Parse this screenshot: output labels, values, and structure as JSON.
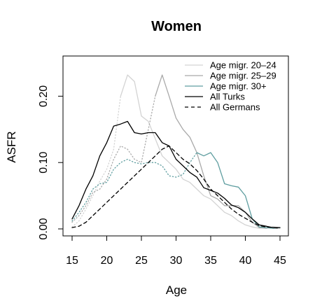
{
  "chart_data": {
    "type": "line",
    "title": "Women",
    "xlabel": "Age",
    "ylabel": "ASFR",
    "xlim": [
      15,
      45
    ],
    "ylim": [
      0,
      0.25
    ],
    "xticks": [
      15,
      20,
      25,
      30,
      35,
      40,
      45
    ],
    "xtick_labels": [
      "15",
      "20",
      "25",
      "30",
      "35",
      "40",
      "45"
    ],
    "yticks": [
      0,
      0.1,
      0.2
    ],
    "ytick_labels": [
      "0.00",
      "0.10",
      "0.20"
    ],
    "grid": false,
    "legend_position": "top-right",
    "legend": [
      {
        "label": "Age migr. 20–24",
        "color": "#d3d3d3",
        "dash": "solid"
      },
      {
        "label": "Age migr. 25–29",
        "color": "#a9a9a9",
        "dash": "solid"
      },
      {
        "label": "Age migr. 30+",
        "color": "#5f9ea0",
        "dash": "solid"
      },
      {
        "label": "All Turks",
        "color": "#000000",
        "dash": "solid"
      },
      {
        "label": "All Germans",
        "color": "#000000",
        "dash": "dashed"
      }
    ],
    "series": [
      {
        "name": "Age migr. 20–24",
        "color": "#d3d3d3",
        "segments": [
          {
            "style": "dotted",
            "points": [
              [
                15,
                0.003
              ],
              [
                16,
                0.012
              ],
              [
                17,
                0.03
              ],
              [
                18,
                0.05
              ],
              [
                19,
                0.072
              ],
              [
                20,
                0.09
              ],
              [
                21,
                0.12
              ],
              [
                22,
                0.2
              ]
            ]
          },
          {
            "style": "solid",
            "points": [
              [
                22,
                0.2
              ],
              [
                23,
                0.232
              ],
              [
                24,
                0.222
              ],
              [
                25,
                0.17
              ],
              [
                26,
                0.162
              ],
              [
                27,
                0.136
              ],
              [
                28,
                0.11
              ],
              [
                29,
                0.1
              ],
              [
                30,
                0.09
              ],
              [
                31,
                0.075
              ],
              [
                32,
                0.07
              ],
              [
                33,
                0.06
              ],
              [
                34,
                0.05
              ],
              [
                35,
                0.045
              ],
              [
                36,
                0.035
              ],
              [
                37,
                0.025
              ],
              [
                38,
                0.02
              ],
              [
                39,
                0.012
              ],
              [
                40,
                0.006
              ],
              [
                41,
                0.003
              ],
              [
                42,
                0.001
              ],
              [
                43,
                0.002
              ],
              [
                44,
                0.001
              ],
              [
                45,
                0.001
              ]
            ]
          }
        ]
      },
      {
        "name": "Age migr. 25–29",
        "color": "#a9a9a9",
        "segments": [
          {
            "style": "dotted",
            "points": [
              [
                15,
                0.01
              ],
              [
                16,
                0.02
              ],
              [
                17,
                0.035
              ],
              [
                18,
                0.055
              ],
              [
                19,
                0.06
              ],
              [
                20,
                0.075
              ],
              [
                21,
                0.105
              ],
              [
                22,
                0.125
              ],
              [
                23,
                0.12
              ],
              [
                24,
                0.105
              ],
              [
                25,
                0.1
              ],
              [
                26,
                0.15
              ],
              [
                27,
                0.2
              ]
            ]
          },
          {
            "style": "solid",
            "points": [
              [
                27,
                0.2
              ],
              [
                28,
                0.232
              ],
              [
                29,
                0.2
              ],
              [
                30,
                0.167
              ],
              [
                31,
                0.15
              ],
              [
                32,
                0.138
              ],
              [
                33,
                0.115
              ],
              [
                34,
                0.08
              ],
              [
                35,
                0.05
              ],
              [
                36,
                0.045
              ],
              [
                37,
                0.035
              ],
              [
                38,
                0.035
              ],
              [
                39,
                0.035
              ],
              [
                40,
                0.025
              ],
              [
                41,
                0.01
              ],
              [
                42,
                0.002
              ],
              [
                43,
                0.001
              ],
              [
                44,
                0.003
              ],
              [
                45,
                0.002
              ]
            ]
          }
        ]
      },
      {
        "name": "Age migr. 30+",
        "color": "#5f9ea0",
        "segments": [
          {
            "style": "dotted",
            "points": [
              [
                15,
                0.012
              ],
              [
                16,
                0.025
              ],
              [
                17,
                0.04
              ],
              [
                18,
                0.06
              ],
              [
                19,
                0.068
              ],
              [
                20,
                0.07
              ],
              [
                21,
                0.09
              ],
              [
                22,
                0.1
              ],
              [
                23,
                0.105
              ],
              [
                24,
                0.1
              ],
              [
                25,
                0.098
              ],
              [
                26,
                0.1
              ],
              [
                27,
                0.1
              ],
              [
                28,
                0.095
              ],
              [
                29,
                0.08
              ],
              [
                30,
                0.078
              ],
              [
                31,
                0.082
              ],
              [
                32,
                0.1
              ],
              [
                33,
                0.115
              ]
            ]
          },
          {
            "style": "solid",
            "points": [
              [
                33,
                0.115
              ],
              [
                34,
                0.11
              ],
              [
                35,
                0.115
              ],
              [
                36,
                0.1
              ],
              [
                37,
                0.068
              ],
              [
                38,
                0.065
              ],
              [
                39,
                0.063
              ],
              [
                40,
                0.05
              ],
              [
                41,
                0.015
              ],
              [
                42,
                0.003
              ],
              [
                43,
                0.002
              ],
              [
                44,
                0.001
              ],
              [
                45,
                0.002
              ]
            ]
          }
        ]
      },
      {
        "name": "All Turks",
        "color": "#000000",
        "segments": [
          {
            "style": "solid",
            "points": [
              [
                15,
                0.015
              ],
              [
                16,
                0.035
              ],
              [
                17,
                0.06
              ],
              [
                18,
                0.08
              ],
              [
                19,
                0.11
              ],
              [
                20,
                0.13
              ],
              [
                21,
                0.155
              ],
              [
                22,
                0.158
              ],
              [
                23,
                0.162
              ],
              [
                24,
                0.145
              ],
              [
                25,
                0.143
              ],
              [
                26,
                0.145
              ],
              [
                27,
                0.145
              ],
              [
                28,
                0.13
              ],
              [
                29,
                0.125
              ],
              [
                30,
                0.105
              ],
              [
                31,
                0.095
              ],
              [
                32,
                0.085
              ],
              [
                33,
                0.078
              ],
              [
                34,
                0.062
              ],
              [
                35,
                0.058
              ],
              [
                36,
                0.054
              ],
              [
                37,
                0.046
              ],
              [
                38,
                0.036
              ],
              [
                39,
                0.032
              ],
              [
                40,
                0.025
              ],
              [
                41,
                0.015
              ],
              [
                42,
                0.006
              ],
              [
                43,
                0.004
              ],
              [
                44,
                0.002
              ],
              [
                45,
                0.002
              ]
            ]
          }
        ]
      },
      {
        "name": "All Germans",
        "color": "#000000",
        "segments": [
          {
            "style": "dashed",
            "points": [
              [
                15,
                0.002
              ],
              [
                16,
                0.004
              ],
              [
                17,
                0.01
              ],
              [
                18,
                0.02
              ],
              [
                19,
                0.03
              ],
              [
                20,
                0.04
              ],
              [
                21,
                0.05
              ],
              [
                22,
                0.06
              ],
              [
                23,
                0.07
              ],
              [
                24,
                0.08
              ],
              [
                25,
                0.09
              ],
              [
                26,
                0.1
              ],
              [
                27,
                0.11
              ],
              [
                28,
                0.12
              ],
              [
                29,
                0.125
              ],
              [
                30,
                0.115
              ],
              [
                31,
                0.105
              ],
              [
                32,
                0.098
              ],
              [
                33,
                0.088
              ],
              [
                34,
                0.075
              ],
              [
                35,
                0.06
              ],
              [
                36,
                0.05
              ],
              [
                37,
                0.04
              ],
              [
                38,
                0.03
              ],
              [
                39,
                0.022
              ],
              [
                40,
                0.016
              ],
              [
                41,
                0.01
              ],
              [
                42,
                0.005
              ],
              [
                43,
                0.003
              ],
              [
                44,
                0.002
              ],
              [
                45,
                0.001
              ]
            ]
          }
        ]
      }
    ]
  }
}
